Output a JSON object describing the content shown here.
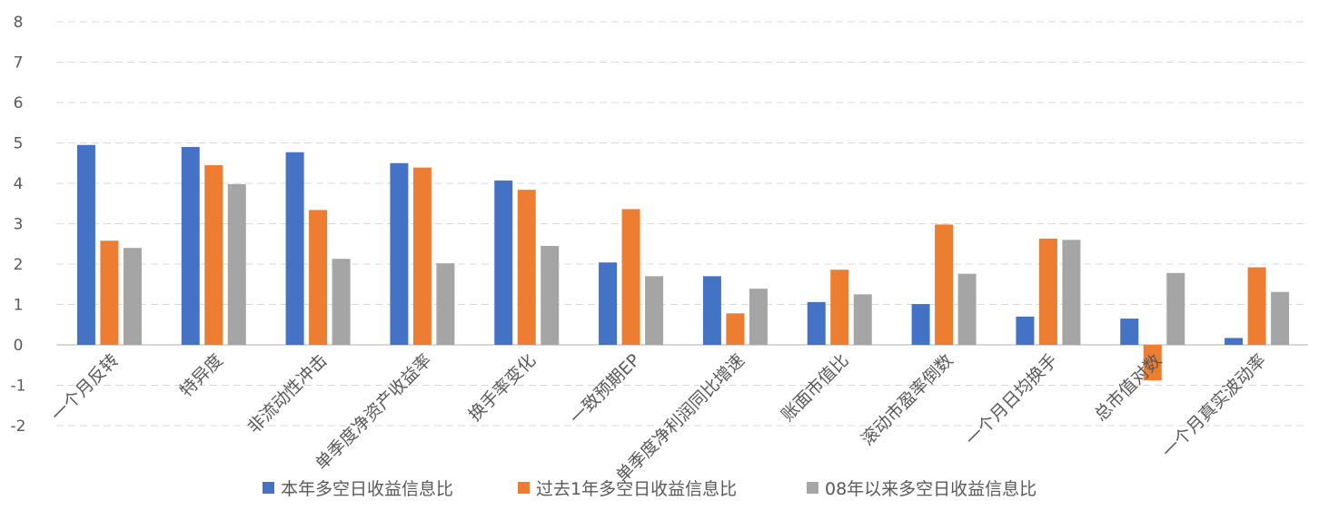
{
  "chart_data": {
    "type": "bar",
    "categories": [
      "一个月反转",
      "特异度",
      "非流动性冲击",
      "单季度净资产收益率",
      "换手率变化",
      "一致预期EP",
      "单季度净利润同比增速",
      "账面市值比",
      "滚动市盈率倒数",
      "一个月日均换手",
      "总市值对数",
      "一个月真实波动率"
    ],
    "series": [
      {
        "name": "本年多空日收益信息比",
        "color": "#4472C4",
        "values": [
          4.95,
          4.9,
          4.77,
          4.5,
          4.07,
          2.04,
          1.7,
          1.06,
          1.01,
          0.7,
          0.65,
          0.17
        ]
      },
      {
        "name": "过去1年多空日收益信息比",
        "color": "#ED7D31",
        "values": [
          2.58,
          4.45,
          3.34,
          4.39,
          3.84,
          3.36,
          0.78,
          1.86,
          2.98,
          2.63,
          -0.88,
          1.92
        ]
      },
      {
        "name": "08年以来多空日收益信息比",
        "color": "#A5A5A5",
        "values": [
          2.4,
          3.98,
          2.13,
          2.02,
          2.45,
          1.7,
          1.39,
          1.25,
          1.76,
          2.6,
          1.78,
          1.31
        ]
      }
    ],
    "yticks": [
      "-2",
      "-1",
      "0",
      "1",
      "2",
      "3",
      "4",
      "5",
      "6",
      "7",
      "8"
    ],
    "ylim": [
      -2,
      8
    ],
    "grid": true,
    "legend": "bottom"
  }
}
